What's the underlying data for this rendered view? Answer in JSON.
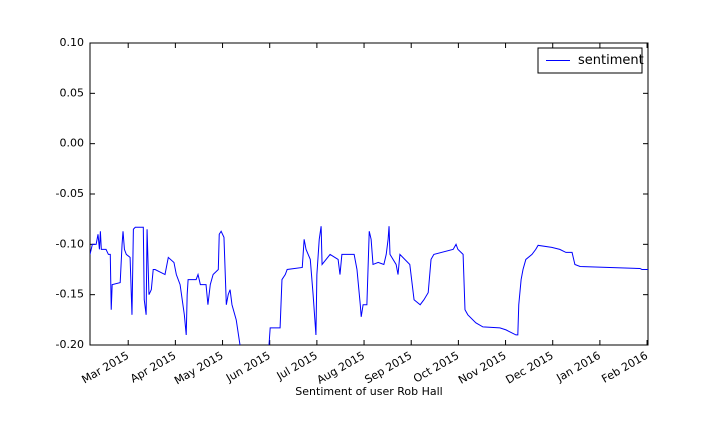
{
  "chart_data": {
    "type": "line",
    "xlabel": "Sentiment of user Rob Hall",
    "x": [
      2.19,
      2.24,
      2.32,
      2.36,
      2.39,
      2.41,
      2.43,
      2.53,
      2.58,
      2.62,
      2.64,
      2.66,
      2.83,
      2.87,
      2.89,
      2.92,
      2.96,
      3.04,
      3.08,
      3.11,
      3.15,
      3.32,
      3.34,
      3.38,
      3.4,
      3.44,
      3.49,
      3.53,
      3.57,
      3.78,
      3.85,
      3.97,
      4.02,
      4.1,
      4.19,
      4.23,
      4.25,
      4.27,
      4.31,
      4.44,
      4.48,
      4.53,
      4.65,
      4.69,
      4.74,
      4.8,
      4.91,
      4.93,
      4.97,
      5.03,
      5.08,
      5.12,
      5.16,
      5.2,
      5.29,
      5.37,
      5.44,
      5.97,
      6.01,
      6.22,
      6.26,
      6.33,
      6.37,
      6.69,
      6.73,
      6.77,
      6.86,
      6.92,
      6.98,
      7.0,
      7.05,
      7.09,
      7.11,
      7.28,
      7.45,
      7.49,
      7.53,
      7.79,
      7.85,
      7.92,
      7.94,
      7.98,
      8.06,
      8.11,
      8.15,
      8.19,
      8.3,
      8.42,
      8.47,
      8.51,
      8.53,
      8.55,
      8.68,
      8.72,
      8.76,
      8.97,
      9.06,
      9.19,
      9.27,
      9.36,
      9.42,
      9.48,
      9.89,
      9.95,
      9.99,
      10.1,
      10.14,
      10.2,
      10.37,
      10.52,
      10.88,
      11.01,
      11.22,
      11.26,
      11.28,
      11.33,
      11.37,
      11.43,
      11.56,
      11.64,
      11.69,
      11.98,
      12.15,
      12.28,
      12.41,
      12.47,
      12.58,
      13.85,
      13.89,
      14.02
    ],
    "series": [
      {
        "name": "sentiment",
        "color": "#0000ff",
        "values": [
          -0.11,
          -0.1,
          -0.1,
          -0.09,
          -0.105,
          -0.087,
          -0.105,
          -0.105,
          -0.11,
          -0.11,
          -0.165,
          -0.14,
          -0.138,
          -0.1,
          -0.087,
          -0.105,
          -0.11,
          -0.113,
          -0.17,
          -0.085,
          -0.083,
          -0.083,
          -0.155,
          -0.17,
          -0.085,
          -0.15,
          -0.145,
          -0.125,
          -0.125,
          -0.13,
          -0.113,
          -0.118,
          -0.13,
          -0.14,
          -0.17,
          -0.19,
          -0.15,
          -0.135,
          -0.135,
          -0.135,
          -0.13,
          -0.14,
          -0.14,
          -0.16,
          -0.14,
          -0.13,
          -0.125,
          -0.09,
          -0.087,
          -0.093,
          -0.16,
          -0.15,
          -0.145,
          -0.16,
          -0.175,
          -0.2,
          -0.21,
          -0.21,
          -0.183,
          -0.183,
          -0.135,
          -0.13,
          -0.125,
          -0.123,
          -0.095,
          -0.105,
          -0.115,
          -0.15,
          -0.19,
          -0.13,
          -0.095,
          -0.082,
          -0.12,
          -0.11,
          -0.115,
          -0.13,
          -0.11,
          -0.11,
          -0.125,
          -0.16,
          -0.172,
          -0.16,
          -0.16,
          -0.087,
          -0.095,
          -0.12,
          -0.118,
          -0.12,
          -0.11,
          -0.095,
          -0.082,
          -0.11,
          -0.12,
          -0.13,
          -0.11,
          -0.12,
          -0.155,
          -0.16,
          -0.155,
          -0.148,
          -0.115,
          -0.11,
          -0.105,
          -0.1,
          -0.105,
          -0.11,
          -0.165,
          -0.17,
          -0.178,
          -0.182,
          -0.183,
          -0.185,
          -0.19,
          -0.19,
          -0.16,
          -0.135,
          -0.125,
          -0.115,
          -0.11,
          -0.105,
          -0.101,
          -0.103,
          -0.105,
          -0.108,
          -0.108,
          -0.12,
          -0.122,
          -0.124,
          -0.125,
          -0.125
        ]
      }
    ],
    "xlim": [
      2.19,
      14.02
    ],
    "xticks": [
      {
        "value": 3,
        "label": "Mar 2015"
      },
      {
        "value": 4,
        "label": "Apr 2015"
      },
      {
        "value": 5,
        "label": "May 2015"
      },
      {
        "value": 6,
        "label": "Jun 2015"
      },
      {
        "value": 7,
        "label": "Jul 2015"
      },
      {
        "value": 8,
        "label": "Aug 2015"
      },
      {
        "value": 9,
        "label": "Sep 2015"
      },
      {
        "value": 10,
        "label": "Oct 2015"
      },
      {
        "value": 11,
        "label": "Nov 2015"
      },
      {
        "value": 12,
        "label": "Dec 2015"
      },
      {
        "value": 13,
        "label": "Jan 2016"
      },
      {
        "value": 14,
        "label": "Feb 2016"
      }
    ],
    "ylim": [
      -0.2,
      0.1
    ],
    "yticks": [
      {
        "value": 0.1,
        "label": "0.10"
      },
      {
        "value": 0.05,
        "label": "0.05"
      },
      {
        "value": 0,
        "label": "0.00"
      },
      {
        "value": -0.05,
        "label": "-0.05"
      },
      {
        "value": -0.1,
        "label": "-0.10"
      },
      {
        "value": -0.15,
        "label": "-0.15"
      },
      {
        "value": -0.2,
        "label": "-0.20"
      }
    ],
    "legend": "upper right"
  }
}
